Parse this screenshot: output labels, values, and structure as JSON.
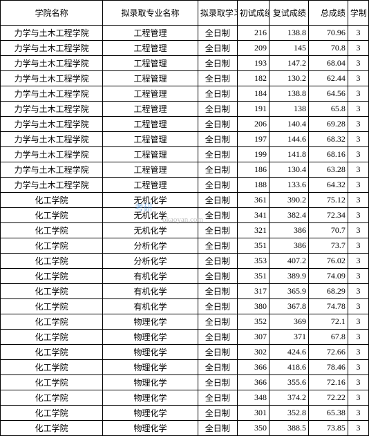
{
  "watermark": {
    "text1": "考研",
    "text2": "okaoyan.com"
  },
  "table": {
    "columns": [
      "学院名称",
      "拟录取专业名称",
      "拟录取学习方式",
      "初试成绩",
      "复试成绩",
      "总成绩",
      "学制"
    ],
    "column_classes": [
      "col-school",
      "col-major",
      "col-mode",
      "col-first",
      "col-second",
      "col-total",
      "col-year"
    ],
    "rows": [
      [
        "力学与土木工程学院",
        "工程管理",
        "全日制",
        "216",
        "138.8",
        "70.96",
        "3"
      ],
      [
        "力学与土木工程学院",
        "工程管理",
        "全日制",
        "209",
        "145",
        "70.8",
        "3"
      ],
      [
        "力学与土木工程学院",
        "工程管理",
        "全日制",
        "193",
        "147.2",
        "68.04",
        "3"
      ],
      [
        "力学与土木工程学院",
        "工程管理",
        "全日制",
        "182",
        "130.2",
        "62.44",
        "3"
      ],
      [
        "力学与土木工程学院",
        "工程管理",
        "全日制",
        "184",
        "138.8",
        "64.56",
        "3"
      ],
      [
        "力学与土木工程学院",
        "工程管理",
        "全日制",
        "191",
        "138",
        "65.8",
        "3"
      ],
      [
        "力学与土木工程学院",
        "工程管理",
        "全日制",
        "206",
        "140.4",
        "69.28",
        "3"
      ],
      [
        "力学与土木工程学院",
        "工程管理",
        "全日制",
        "197",
        "144.6",
        "68.32",
        "3"
      ],
      [
        "力学与土木工程学院",
        "工程管理",
        "全日制",
        "199",
        "141.8",
        "68.16",
        "3"
      ],
      [
        "力学与土木工程学院",
        "工程管理",
        "全日制",
        "186",
        "130.4",
        "63.28",
        "3"
      ],
      [
        "力学与土木工程学院",
        "工程管理",
        "全日制",
        "188",
        "133.6",
        "64.32",
        "3"
      ],
      [
        "化工学院",
        "无机化学",
        "全日制",
        "361",
        "390.2",
        "75.12",
        "3"
      ],
      [
        "化工学院",
        "无机化学",
        "全日制",
        "341",
        "382.4",
        "72.34",
        "3"
      ],
      [
        "化工学院",
        "无机化学",
        "全日制",
        "321",
        "386",
        "70.7",
        "3"
      ],
      [
        "化工学院",
        "分析化学",
        "全日制",
        "351",
        "386",
        "73.7",
        "3"
      ],
      [
        "化工学院",
        "分析化学",
        "全日制",
        "353",
        "407.2",
        "76.02",
        "3"
      ],
      [
        "化工学院",
        "有机化学",
        "全日制",
        "351",
        "389.9",
        "74.09",
        "3"
      ],
      [
        "化工学院",
        "有机化学",
        "全日制",
        "317",
        "365.9",
        "68.29",
        "3"
      ],
      [
        "化工学院",
        "有机化学",
        "全日制",
        "380",
        "367.8",
        "74.78",
        "3"
      ],
      [
        "化工学院",
        "物理化学",
        "全日制",
        "352",
        "369",
        "72.1",
        "3"
      ],
      [
        "化工学院",
        "物理化学",
        "全日制",
        "307",
        "371",
        "67.8",
        "3"
      ],
      [
        "化工学院",
        "物理化学",
        "全日制",
        "302",
        "424.6",
        "72.66",
        "3"
      ],
      [
        "化工学院",
        "物理化学",
        "全日制",
        "366",
        "418.6",
        "78.46",
        "3"
      ],
      [
        "化工学院",
        "物理化学",
        "全日制",
        "366",
        "355.6",
        "72.16",
        "3"
      ],
      [
        "化工学院",
        "物理化学",
        "全日制",
        "348",
        "374.2",
        "72.22",
        "3"
      ],
      [
        "化工学院",
        "物理化学",
        "全日制",
        "301",
        "352.8",
        "65.38",
        "3"
      ],
      [
        "化工学院",
        "物理化学",
        "全日制",
        "350",
        "388.5",
        "73.85",
        "3"
      ]
    ]
  }
}
